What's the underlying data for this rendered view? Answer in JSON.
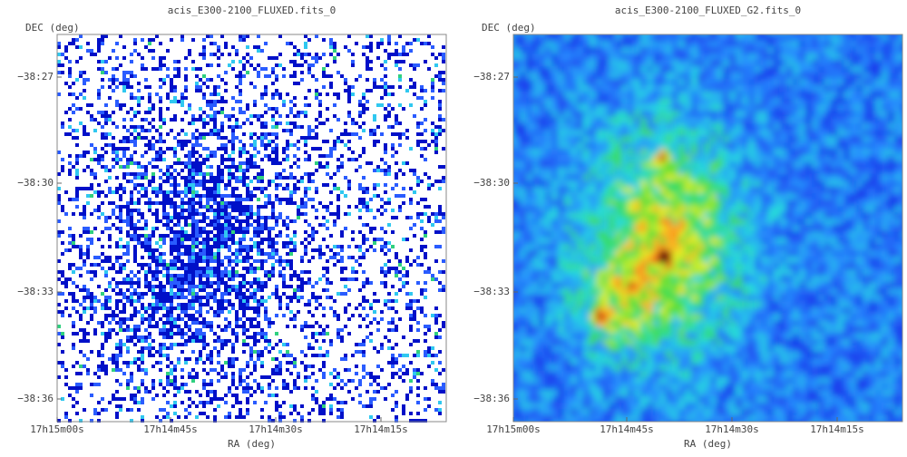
{
  "panels": [
    {
      "title": "acis_E300-2100_FLUXED.fits_0",
      "y_label": "DEC (deg)",
      "x_label": "RA (deg)",
      "y_ticks": [
        "−38:27",
        "−38:30",
        "−38:33",
        "−38:36"
      ],
      "x_ticks": [
        "17h15m00s",
        "17h14m45s",
        "17h14m30s",
        "17h14m15s"
      ]
    },
    {
      "title": "acis_E300-2100_FLUXED_G2.fits_0",
      "y_label": "DEC (deg)",
      "x_label": "RA (deg)",
      "y_ticks": [
        "−38:27",
        "−38:30",
        "−38:33",
        "−38:36"
      ],
      "x_ticks": [
        "17h15m00s",
        "17h14m45s",
        "17h14m30s",
        "17h14m15s"
      ]
    }
  ]
}
